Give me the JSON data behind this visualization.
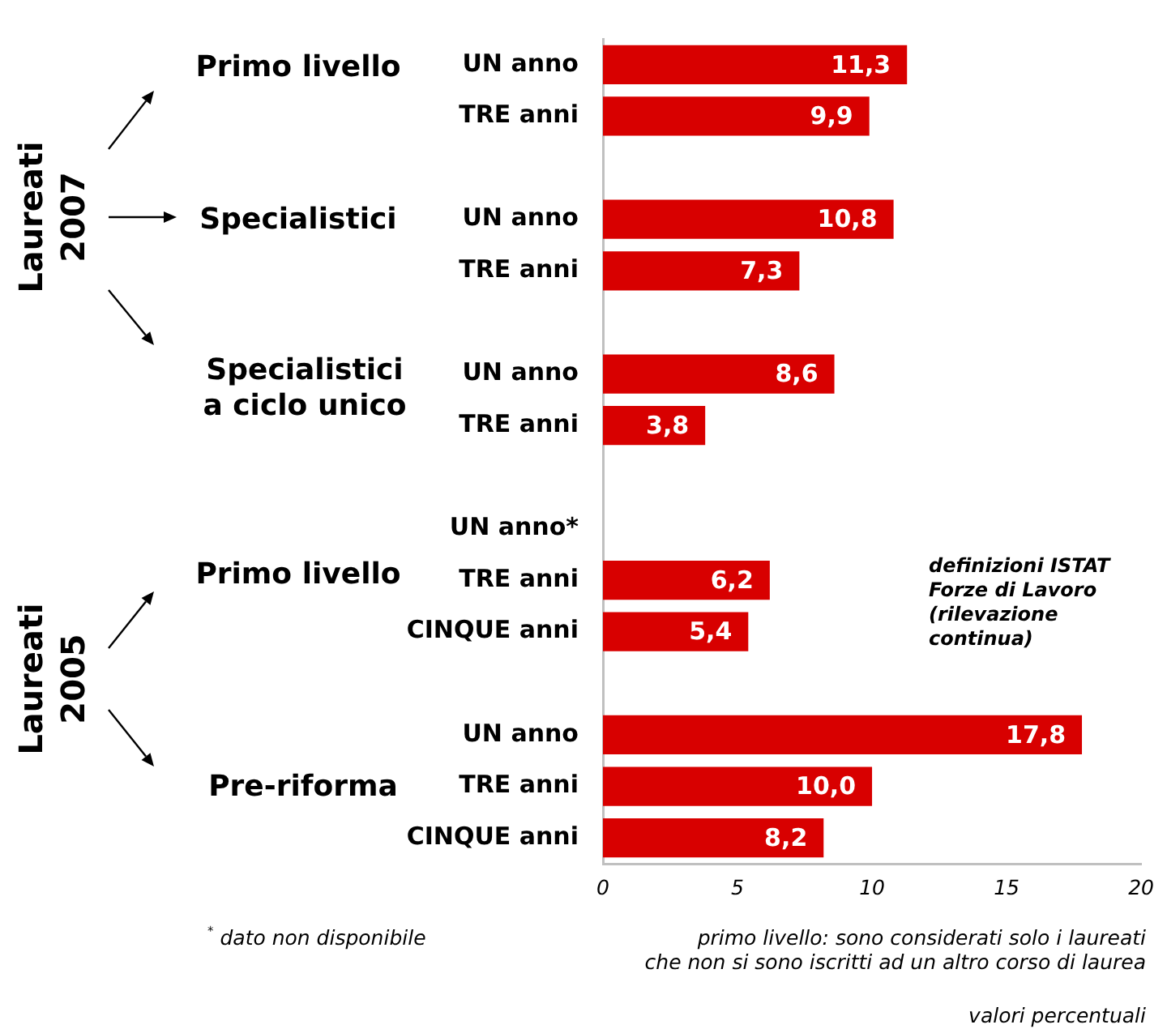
{
  "chart_data": {
    "type": "bar",
    "orientation": "horizontal",
    "categories": [
      "UN anno",
      "TRE anni",
      null,
      "UN anno",
      "TRE anni",
      null,
      "UN anno",
      "TRE anni",
      null,
      "UN anno*",
      "TRE anni",
      "CINQUE anni",
      null,
      "UN anno",
      "TRE anni",
      "CINQUE anni"
    ],
    "values": [
      11.3,
      9.9,
      null,
      10.8,
      7.3,
      null,
      8.6,
      3.8,
      null,
      null,
      6.2,
      5.4,
      null,
      17.8,
      10.0,
      8.2
    ],
    "value_labels": [
      "11,3",
      "9,9",
      null,
      "10,8",
      "7,3",
      null,
      "8,6",
      "3,8",
      null,
      null,
      "6,2",
      "5,4",
      null,
      "17,8",
      "10,0",
      "8,2"
    ],
    "color": "#d80000",
    "xlim": [
      0,
      20
    ],
    "xticks": [
      0,
      5,
      10,
      15,
      20
    ],
    "annotations": [
      "Laureati 2007",
      "Primo livello",
      "Specialistici",
      "Specialistici a ciclo unico",
      "Laureati 2005",
      "Primo livello",
      "Pre-riforma",
      "definizioni ISTAT Forze di Lavoro (rilevazione continua)",
      "$^{*}$ dato non disponibile",
      "primo livello: sono considerati solo i laureati\nche non si sono iscritti ad un altro corso di laurea",
      "valori percentuali"
    ]
  }
}
